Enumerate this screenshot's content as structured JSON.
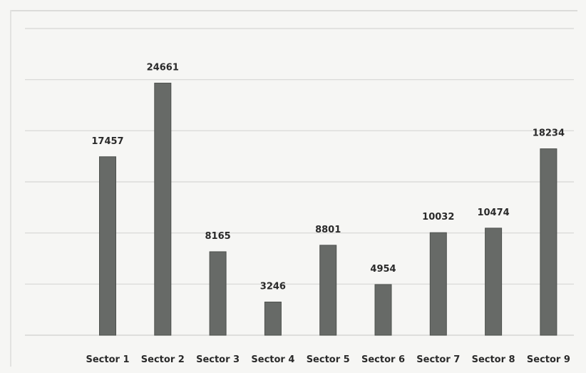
{
  "chart_data": {
    "type": "bar",
    "categories": [
      "Sector 1",
      "Sector 2",
      "Sector 3",
      "Sector 4",
      "Sector 5",
      "Sector 6",
      "Sector 7",
      "Sector 8",
      "Sector 9"
    ],
    "values": [
      17457,
      24661,
      8165,
      3246,
      8801,
      4954,
      10032,
      10474,
      18234
    ],
    "title": "",
    "xlabel": "",
    "ylabel": "",
    "ylim": [
      0,
      30000
    ],
    "grid": true,
    "legend": "none",
    "data_labels": true,
    "bar_color": "#676a67",
    "grid_color": "#d6d6d4"
  }
}
